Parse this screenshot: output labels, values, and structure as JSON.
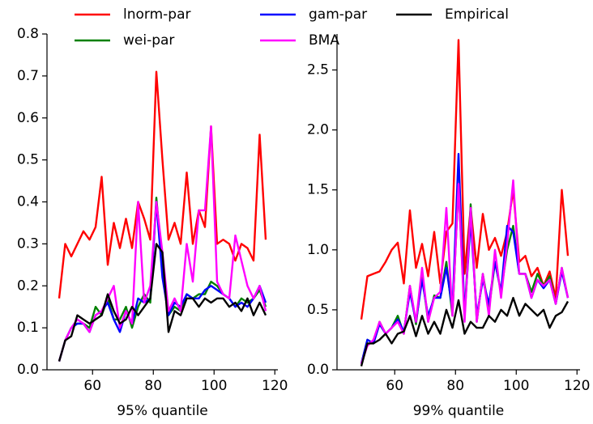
{
  "chart_data": [
    {
      "type": "line",
      "xlabel": "95% quantile",
      "x": [
        49,
        51,
        53,
        55,
        57,
        59,
        61,
        63,
        65,
        67,
        69,
        71,
        73,
        75,
        77,
        79,
        81,
        83,
        85,
        87,
        89,
        91,
        93,
        95,
        97,
        99,
        101,
        103,
        105,
        107,
        109,
        111,
        113,
        115,
        117
      ],
      "xlim": [
        45,
        121
      ],
      "xticks": [
        60,
        80,
        100,
        120
      ],
      "ylim": [
        0,
        0.8
      ],
      "yticks": [
        {
          "value": 0,
          "label": "0.0"
        },
        0.1,
        0.2,
        0.3,
        0.4,
        0.5,
        0.6,
        0.7,
        0.8
      ],
      "legend": "upper center",
      "series": [
        {
          "name": "lnorm-par",
          "color": "#ff0000",
          "values": [
            0.17,
            0.3,
            0.27,
            0.3,
            0.33,
            0.31,
            0.34,
            0.46,
            0.25,
            0.35,
            0.29,
            0.36,
            0.29,
            0.4,
            0.36,
            0.31,
            0.71,
            0.5,
            0.31,
            0.35,
            0.3,
            0.47,
            0.3,
            0.38,
            0.34,
            0.58,
            0.3,
            0.31,
            0.3,
            0.26,
            0.3,
            0.29,
            0.26,
            0.56,
            0.31
          ]
        },
        {
          "name": "wei-par",
          "color": "#008000",
          "values": [
            0.02,
            0.07,
            0.1,
            0.11,
            0.11,
            0.1,
            0.15,
            0.13,
            0.17,
            0.12,
            0.12,
            0.15,
            0.1,
            0.15,
            0.18,
            0.16,
            0.41,
            0.25,
            0.13,
            0.15,
            0.14,
            0.18,
            0.17,
            0.18,
            0.18,
            0.21,
            0.2,
            0.18,
            0.17,
            0.15,
            0.17,
            0.16,
            0.17,
            0.19,
            0.15
          ]
        },
        {
          "name": "gam-par",
          "color": "#0000ff",
          "values": [
            0.02,
            0.07,
            0.1,
            0.11,
            0.11,
            0.09,
            0.13,
            0.14,
            0.16,
            0.12,
            0.09,
            0.14,
            0.11,
            0.17,
            0.16,
            0.17,
            0.4,
            0.22,
            0.13,
            0.16,
            0.15,
            0.18,
            0.17,
            0.17,
            0.19,
            0.2,
            0.19,
            0.18,
            0.17,
            0.15,
            0.16,
            0.15,
            0.17,
            0.2,
            0.16
          ]
        },
        {
          "name": "BMA",
          "color": "#ff00ff",
          "values": [
            0.02,
            0.07,
            0.1,
            0.12,
            0.11,
            0.09,
            0.13,
            0.14,
            0.17,
            0.2,
            0.1,
            0.14,
            0.11,
            0.4,
            0.16,
            0.2,
            0.4,
            0.28,
            0.14,
            0.17,
            0.14,
            0.3,
            0.21,
            0.38,
            0.38,
            0.58,
            0.21,
            0.18,
            0.17,
            0.32,
            0.26,
            0.2,
            0.17,
            0.2,
            0.14
          ]
        },
        {
          "name": "Empirical",
          "color": "#000000",
          "values": [
            0.02,
            0.07,
            0.08,
            0.13,
            0.12,
            0.11,
            0.12,
            0.13,
            0.18,
            0.14,
            0.11,
            0.12,
            0.15,
            0.13,
            0.15,
            0.17,
            0.3,
            0.28,
            0.09,
            0.14,
            0.13,
            0.17,
            0.17,
            0.15,
            0.17,
            0.16,
            0.17,
            0.17,
            0.15,
            0.16,
            0.14,
            0.17,
            0.13,
            0.16,
            0.13
          ]
        }
      ]
    },
    {
      "type": "line",
      "xlabel": "99% quantile",
      "x": [
        49,
        51,
        53,
        55,
        57,
        59,
        61,
        63,
        65,
        67,
        69,
        71,
        73,
        75,
        77,
        79,
        81,
        83,
        85,
        87,
        89,
        91,
        93,
        95,
        97,
        99,
        101,
        103,
        105,
        107,
        109,
        111,
        113,
        115,
        117
      ],
      "xlim": [
        41,
        121
      ],
      "xticks": [
        60,
        80,
        100,
        120
      ],
      "ylim": [
        0,
        2.8
      ],
      "yticks": [
        {
          "value": 0,
          "label": "0.0"
        },
        0.5,
        {
          "value": 1,
          "label": "1.0"
        },
        1.5,
        {
          "value": 2,
          "label": "2.0"
        },
        2.5
      ],
      "series": [
        {
          "name": "lnorm-par",
          "color": "#ff0000",
          "values": [
            0.42,
            0.78,
            0.8,
            0.82,
            0.9,
            1.0,
            1.06,
            0.72,
            1.33,
            0.85,
            1.05,
            0.78,
            1.15,
            0.72,
            1.15,
            1.22,
            2.75,
            0.8,
            1.35,
            0.85,
            1.3,
            1.0,
            1.1,
            0.95,
            1.15,
            1.5,
            0.9,
            0.95,
            0.78,
            0.85,
            0.7,
            0.82,
            0.6,
            1.5,
            0.95
          ]
        },
        {
          "name": "wei-par",
          "color": "#008000",
          "values": [
            0.05,
            0.25,
            0.22,
            0.4,
            0.3,
            0.35,
            0.45,
            0.3,
            0.7,
            0.38,
            0.8,
            0.4,
            0.62,
            0.6,
            0.9,
            0.45,
            1.55,
            0.45,
            1.38,
            0.4,
            0.8,
            0.5,
            0.9,
            0.65,
            1.0,
            1.2,
            0.8,
            0.8,
            0.65,
            0.8,
            0.7,
            0.78,
            0.55,
            0.85,
            0.6
          ]
        },
        {
          "name": "gam-par",
          "color": "#0000ff",
          "values": [
            0.05,
            0.25,
            0.22,
            0.38,
            0.3,
            0.35,
            0.42,
            0.32,
            0.65,
            0.4,
            0.75,
            0.45,
            0.6,
            0.6,
            0.85,
            0.5,
            1.8,
            0.45,
            1.25,
            0.45,
            0.75,
            0.55,
            0.9,
            0.65,
            1.2,
            1.15,
            0.8,
            0.8,
            0.6,
            0.75,
            0.68,
            0.75,
            0.55,
            0.82,
            0.6
          ]
        },
        {
          "name": "BMA",
          "color": "#ff00ff",
          "values": [
            0.05,
            0.2,
            0.25,
            0.4,
            0.3,
            0.35,
            0.4,
            0.3,
            0.7,
            0.4,
            0.85,
            0.4,
            0.6,
            0.65,
            1.35,
            0.45,
            1.55,
            0.4,
            1.35,
            0.4,
            0.8,
            0.45,
            1.0,
            0.6,
            1.05,
            1.58,
            0.8,
            0.8,
            0.6,
            0.75,
            0.7,
            0.75,
            0.55,
            0.85,
            0.6
          ]
        },
        {
          "name": "Empirical",
          "color": "#000000",
          "values": [
            0.03,
            0.22,
            0.22,
            0.25,
            0.3,
            0.22,
            0.3,
            0.32,
            0.45,
            0.28,
            0.45,
            0.3,
            0.4,
            0.3,
            0.5,
            0.35,
            0.58,
            0.3,
            0.4,
            0.35,
            0.35,
            0.45,
            0.4,
            0.5,
            0.45,
            0.6,
            0.45,
            0.55,
            0.5,
            0.45,
            0.5,
            0.35,
            0.45,
            0.48,
            0.57
          ]
        }
      ]
    }
  ]
}
